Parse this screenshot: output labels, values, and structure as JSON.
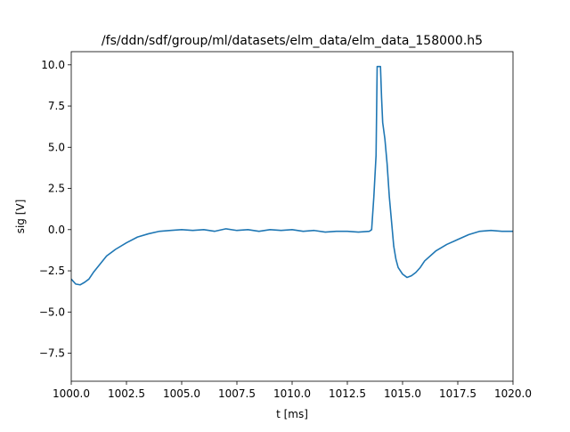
{
  "chart_data": {
    "type": "line",
    "title": "/fs/ddn/sdf/group/ml/datasets/elm_data/elm_data_158000.h5",
    "xlabel": "t [ms]",
    "ylabel": "sig [V]",
    "xlim": [
      1000.0,
      1020.0
    ],
    "ylim": [
      -9.2,
      10.8
    ],
    "grid": false,
    "legend": "none",
    "x_ticks": [
      1000.0,
      1002.5,
      1005.0,
      1007.5,
      1010.0,
      1012.5,
      1015.0,
      1017.5,
      1020.0
    ],
    "x_tick_labels": [
      "1000.0",
      "1002.5",
      "1005.0",
      "1007.5",
      "1010.0",
      "1012.5",
      "1015.0",
      "1017.5",
      "1020.0"
    ],
    "y_ticks": [
      -7.5,
      -5.0,
      -2.5,
      0.0,
      2.5,
      5.0,
      7.5,
      10.0
    ],
    "y_tick_labels": [
      "−7.5",
      "−5.0",
      "−2.5",
      "0.0",
      "2.5",
      "5.0",
      "7.5",
      "10.0"
    ],
    "series": [
      {
        "color": "#1f77b4",
        "x": [
          1000.0,
          1000.2,
          1000.4,
          1000.6,
          1000.8,
          1001.0,
          1001.3,
          1001.6,
          1002.0,
          1002.5,
          1003.0,
          1003.5,
          1004.0,
          1004.5,
          1005.0,
          1005.5,
          1006.0,
          1006.5,
          1007.0,
          1007.5,
          1008.0,
          1008.5,
          1009.0,
          1009.5,
          1010.0,
          1010.5,
          1011.0,
          1011.5,
          1012.0,
          1012.5,
          1013.0,
          1013.5,
          1013.6,
          1013.7,
          1013.8,
          1013.85,
          1013.9,
          1014.0,
          1014.05,
          1014.1,
          1014.2,
          1014.3,
          1014.4,
          1014.5,
          1014.6,
          1014.7,
          1014.8,
          1015.0,
          1015.2,
          1015.4,
          1015.6,
          1015.8,
          1016.0,
          1016.5,
          1017.0,
          1017.5,
          1018.0,
          1018.5,
          1019.0,
          1019.5,
          1020.0
        ],
        "y": [
          -3.0,
          -3.3,
          -3.35,
          -3.2,
          -3.0,
          -2.6,
          -2.1,
          -1.6,
          -1.2,
          -0.8,
          -0.45,
          -0.25,
          -0.1,
          -0.05,
          0.0,
          -0.05,
          0.0,
          -0.1,
          0.05,
          -0.05,
          0.0,
          -0.1,
          0.0,
          -0.05,
          0.0,
          -0.1,
          -0.05,
          -0.15,
          -0.1,
          -0.1,
          -0.15,
          -0.1,
          0.0,
          2.0,
          4.5,
          9.9,
          9.9,
          9.9,
          8.0,
          6.5,
          5.5,
          4.0,
          2.0,
          0.5,
          -1.0,
          -1.8,
          -2.3,
          -2.7,
          -2.9,
          -2.8,
          -2.6,
          -2.3,
          -1.9,
          -1.3,
          -0.9,
          -0.6,
          -0.3,
          -0.1,
          -0.05,
          -0.1,
          -0.1
        ]
      }
    ]
  }
}
